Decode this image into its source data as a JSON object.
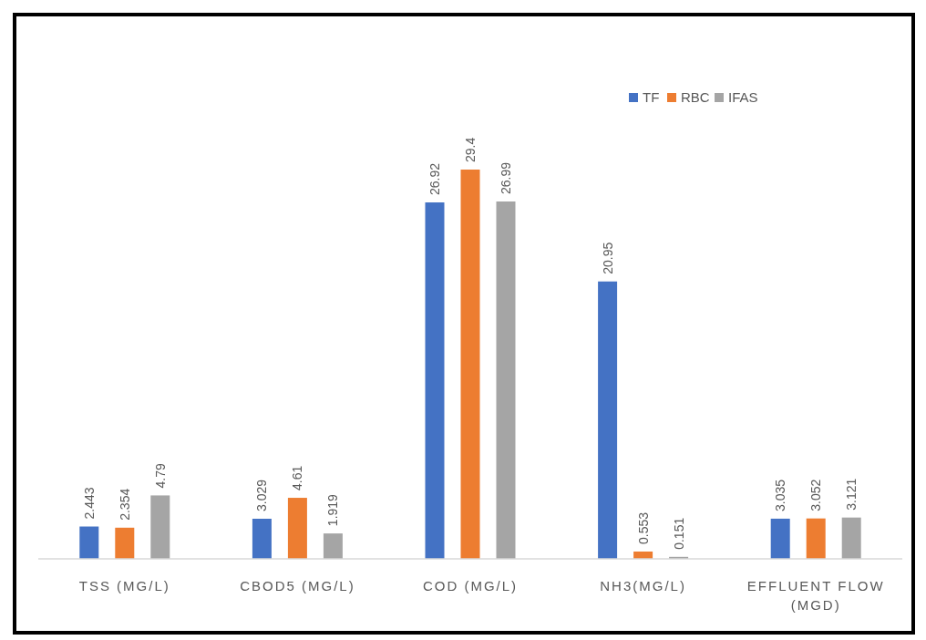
{
  "chart_data": {
    "type": "bar",
    "categories": [
      "TSS (MG/L)",
      "CBOD5 (MG/L)",
      "COD (MG/L)",
      "NH3(MG/L)",
      "EFFLUENT FLOW (MGD)"
    ],
    "series": [
      {
        "name": "TF",
        "color": "#4472c4",
        "values": [
          2.443,
          3.029,
          26.92,
          20.95,
          3.035
        ]
      },
      {
        "name": "RBC",
        "color": "#ed7d31",
        "values": [
          2.354,
          4.61,
          29.4,
          0.553,
          3.052
        ]
      },
      {
        "name": "IFAS",
        "color": "#a5a5a5",
        "values": [
          4.79,
          1.919,
          26.99,
          0.151,
          3.121
        ]
      }
    ],
    "data_labels": true,
    "legend": "top right",
    "grid": false
  }
}
